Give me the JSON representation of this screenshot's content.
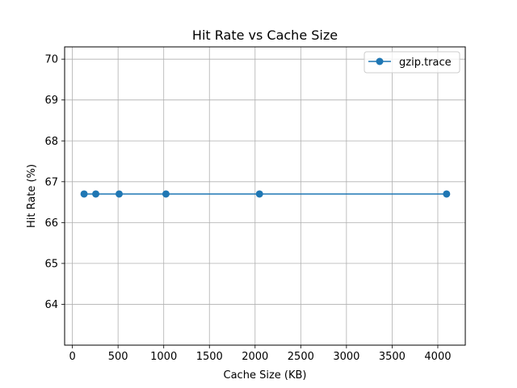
{
  "chart_data": {
    "type": "line",
    "title": "Hit Rate vs Cache Size",
    "xlabel": "Cache Size (KB)",
    "ylabel": "Hit Rate (%)",
    "xlim": [
      -85,
      4301
    ],
    "ylim": [
      63.0,
      70.3
    ],
    "xticks": [
      0,
      500,
      1000,
      1500,
      2000,
      2500,
      3000,
      3500,
      4000
    ],
    "yticks": [
      64,
      65,
      66,
      67,
      68,
      69,
      70
    ],
    "grid": true,
    "legend_position": "top-right",
    "series": [
      {
        "name": "gzip.trace",
        "color": "#1f77b4",
        "marker": "circle",
        "x": [
          128,
          256,
          512,
          1024,
          2048,
          4096
        ],
        "y": [
          66.7,
          66.7,
          66.7,
          66.7,
          66.7,
          66.7
        ]
      }
    ]
  }
}
